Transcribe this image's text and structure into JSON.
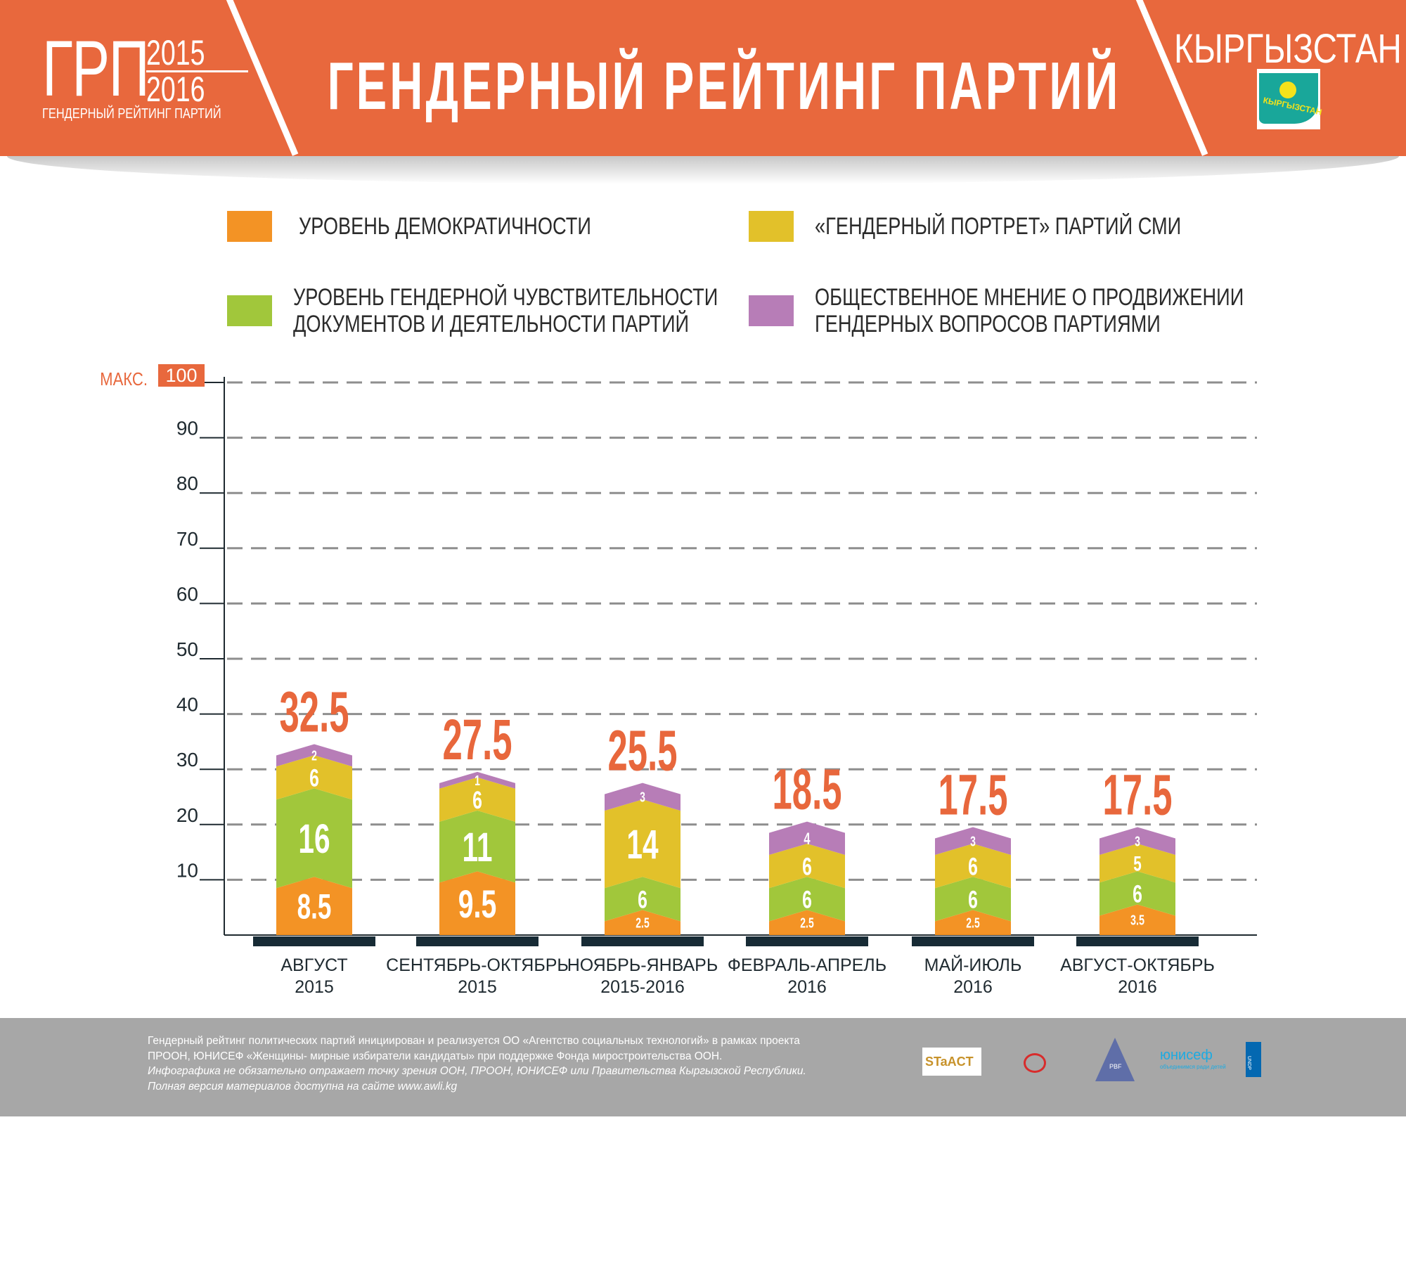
{
  "header": {
    "logo_abbr": "ГРП",
    "logo_year_top": "2015",
    "logo_year_bottom": "2016",
    "logo_subtitle": "ГЕНДЕРНЫЙ РЕЙТИНГ ПАРТИЙ",
    "title": "ГЕНДЕРНЫЙ РЕЙТИНГ ПАРТИЙ",
    "country": "КЫРГЫЗСТАН",
    "flag_text": "КЫРГЫЗСТАН"
  },
  "colors": {
    "header": "#E8683D",
    "total_label": "#E8673C",
    "base": "#172B35",
    "grid": "#8E8E8E"
  },
  "chart_data": {
    "type": "bar",
    "stacked": true,
    "title": "ГЕНДЕРНЫЙ РЕЙТИНГ ПАРТИЙ",
    "max_label": "МАКС.",
    "ylim": [
      0,
      100
    ],
    "yticks": [
      10,
      20,
      30,
      40,
      50,
      60,
      70,
      80,
      90,
      100
    ],
    "grid": true,
    "legend_placement": "top",
    "categories": [
      [
        "АВГУСТ",
        "2015"
      ],
      [
        "СЕНТЯБРЬ-ОКТЯБРЬ",
        "2015"
      ],
      [
        "НОЯБРЬ-ЯНВАРЬ",
        "2015-2016"
      ],
      [
        "ФЕВРАЛЬ-АПРЕЛЬ",
        "2016"
      ],
      [
        "МАЙ-ИЮЛЬ",
        "2016"
      ],
      [
        "АВГУСТ-ОКТЯБРЬ",
        "2016"
      ]
    ],
    "series": [
      {
        "name": "УРОВЕНЬ ДЕМОКРАТИЧНОСТИ",
        "name_lines": [
          "УРОВЕНЬ ДЕМОКРАТИЧНОСТИ"
        ],
        "color": "#F39325",
        "values": [
          8.5,
          9.5,
          2.5,
          2.5,
          2.5,
          3.5
        ]
      },
      {
        "name": "УРОВЕНЬ ГЕНДЕРНОЙ ЧУВСТВИТЕЛЬНОСТИ ДОКУМЕНТОВ И ДЕЯТЕЛЬНОСТИ ПАРТИЙ",
        "name_lines": [
          "УРОВЕНЬ ГЕНДЕРНОЙ ЧУВСТВИТЕЛЬНОСТИ",
          "ДОКУМЕНТОВ И ДЕЯТЕЛЬНОСТИ ПАРТИЙ"
        ],
        "color": "#A1C73B",
        "values": [
          16,
          11,
          6,
          6,
          6,
          6
        ]
      },
      {
        "name": "«ГЕНДЕРНЫЙ ПОРТРЕТ» ПАРТИЙ СМИ",
        "name_lines": [
          "«ГЕНДЕРНЫЙ ПОРТРЕТ» ПАРТИЙ СМИ"
        ],
        "color": "#E2C12A",
        "values": [
          6,
          6,
          14,
          6,
          6,
          5
        ]
      },
      {
        "name": "ОБЩЕСТВЕННОЕ МНЕНИЕ О ПРОДВИЖЕНИИ ГЕНДЕРНЫХ ВОПРОСОВ ПАРТИЯМИ",
        "name_lines": [
          "ОБЩЕСТВЕННОЕ МНЕНИЕ О ПРОДВИЖЕНИИ",
          "ГЕНДЕРНЫХ ВОПРОСОВ ПАРТИЯМИ"
        ],
        "color": "#B77DB7",
        "values": [
          2,
          1,
          3,
          4,
          3,
          3
        ]
      }
    ],
    "totals": [
      "32.5",
      "27.5",
      "25.5",
      "18.5",
      "17.5",
      "17.5"
    ]
  },
  "footer": {
    "line1": "Гендерный рейтинг политических партий инициирован и реализуется ОО «Агентство социальных технологий» в рамках проекта",
    "line2": "ПРООН, ЮНИСЕФ «Женщины- мирные избиратели кандидаты» при поддержке Фонда миростроительства ООН.",
    "line3": "Инфографика не обязательно отражает точку зрения ООН, ПРООН, ЮНИСЕФ или Правительства Кыргызской Республики.",
    "line4": "Полная версия материалов доступна на сайте www.awli.kg",
    "logos": {
      "sta": "STaACT",
      "pbf": "PBF",
      "unicef": "юнисеф",
      "unicef_sub": "объединимся ради детей",
      "undp": "UNDP"
    }
  }
}
